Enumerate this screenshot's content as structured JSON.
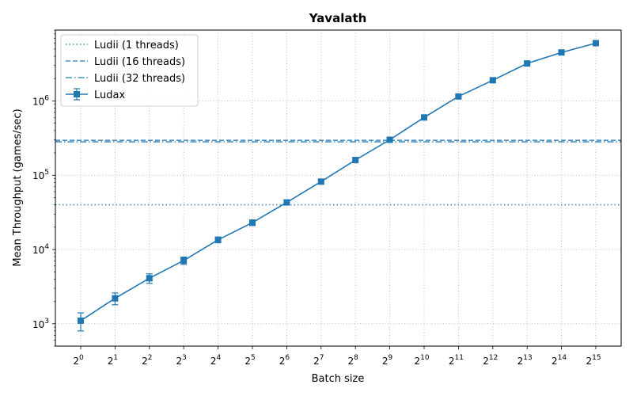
{
  "chart_data": {
    "type": "line",
    "title": "Yavalath",
    "xlabel": "Batch size",
    "ylabel": "Mean Throughput (games/sec)",
    "x_scale": "log2",
    "y_scale": "log10",
    "x": [
      1,
      2,
      4,
      8,
      16,
      32,
      64,
      128,
      256,
      512,
      1024,
      2048,
      4096,
      8192,
      16384,
      32768
    ],
    "x_tick_exponents": [
      "0",
      "1",
      "2",
      "3",
      "4",
      "5",
      "6",
      "7",
      "8",
      "9",
      "10",
      "11",
      "12",
      "13",
      "14",
      "15"
    ],
    "y_tick_exponents": [
      "3",
      "4",
      "5",
      "6"
    ],
    "ylim": [
      500,
      9000000
    ],
    "grid": true,
    "legend_position": "upper left",
    "series": [
      {
        "name": "Ludii (1 threads)",
        "kind": "hline",
        "style": "dotted",
        "color": "#4a90c2",
        "value": 40000
      },
      {
        "name": "Ludii (16 threads)",
        "kind": "hline",
        "style": "dashed",
        "color": "#4a90c2",
        "value": 295000
      },
      {
        "name": "Ludii (32 threads)",
        "kind": "hline",
        "style": "dashdot",
        "color": "#4a90c2",
        "value": 282000
      },
      {
        "name": "Ludax",
        "kind": "line",
        "marker": "square",
        "color": "#1f77b4",
        "values": [
          1100,
          2200,
          4100,
          7100,
          13500,
          23000,
          43000,
          82000,
          160000,
          300000,
          600000,
          1150000,
          1900000,
          3200000,
          4500000,
          6000000
        ],
        "err_low": [
          800,
          1800,
          3500,
          6300,
          12300,
          21000,
          40000,
          77000,
          150000,
          285000,
          565000,
          1100000,
          1800000,
          3050000,
          4300000,
          5650000
        ],
        "err_high": [
          1400,
          2600,
          4700,
          7900,
          14700,
          25000,
          46000,
          87000,
          170000,
          320000,
          635000,
          1200000,
          2000000,
          3350000,
          4700000,
          6350000
        ]
      }
    ]
  }
}
